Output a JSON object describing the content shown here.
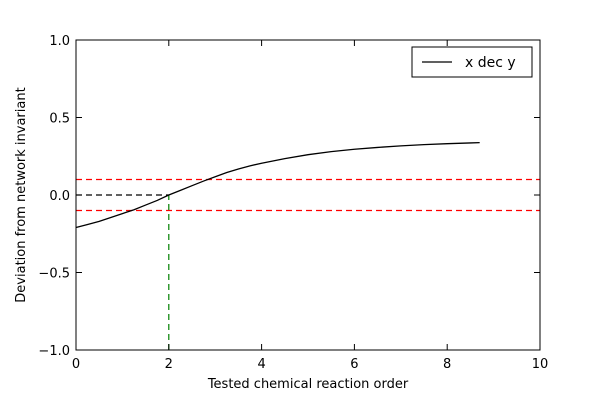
{
  "chart_data": {
    "type": "line",
    "title": "",
    "xlabel": "Tested chemical reaction order",
    "ylabel": "Deviation from network invariant",
    "xlim": [
      0,
      10
    ],
    "ylim": [
      -1.0,
      1.0
    ],
    "xticks": [
      0,
      2,
      4,
      6,
      8,
      10
    ],
    "xtick_labels": [
      "0",
      "2",
      "4",
      "6",
      "8",
      "10"
    ],
    "yticks": [
      1.0,
      0.5,
      0.0,
      -0.5,
      -1.0
    ],
    "ytick_labels": [
      "1.0",
      "0.5",
      "0.0",
      "−0.5",
      "−1.0"
    ],
    "grid": false,
    "legend": {
      "placement": "top-right",
      "entries": [
        "x dec y"
      ]
    },
    "series": [
      {
        "name": "x dec y",
        "color": "#000000",
        "style": "solid",
        "x": [
          0,
          0.25,
          0.5,
          0.75,
          1.0,
          1.25,
          1.5,
          1.75,
          2.0,
          2.25,
          2.5,
          2.75,
          3.0,
          3.25,
          3.5,
          3.75,
          4.0,
          4.5,
          5.0,
          5.5,
          6.0,
          6.5,
          7.0,
          7.5,
          8.0,
          8.5,
          8.7
        ],
        "y": [
          -0.21,
          -0.19,
          -0.17,
          -0.145,
          -0.12,
          -0.095,
          -0.065,
          -0.035,
          0.0,
          0.03,
          0.06,
          0.09,
          0.118,
          0.145,
          0.168,
          0.188,
          0.205,
          0.235,
          0.26,
          0.28,
          0.295,
          0.307,
          0.317,
          0.325,
          0.331,
          0.336,
          0.338
        ]
      }
    ],
    "reference_lines": [
      {
        "orientation": "horizontal",
        "y": 0.1,
        "x_range": [
          0,
          10
        ],
        "color": "#ff0000",
        "style": "dashed"
      },
      {
        "orientation": "horizontal",
        "y": -0.1,
        "x_range": [
          0,
          10
        ],
        "color": "#ff0000",
        "style": "dashed"
      },
      {
        "orientation": "horizontal",
        "y": 0.0,
        "x_range": [
          0,
          2
        ],
        "color": "#000000",
        "style": "dashed"
      },
      {
        "orientation": "vertical",
        "x": 2,
        "y_range": [
          -1.0,
          0.0
        ],
        "color": "#008000",
        "style": "dashed"
      }
    ]
  }
}
